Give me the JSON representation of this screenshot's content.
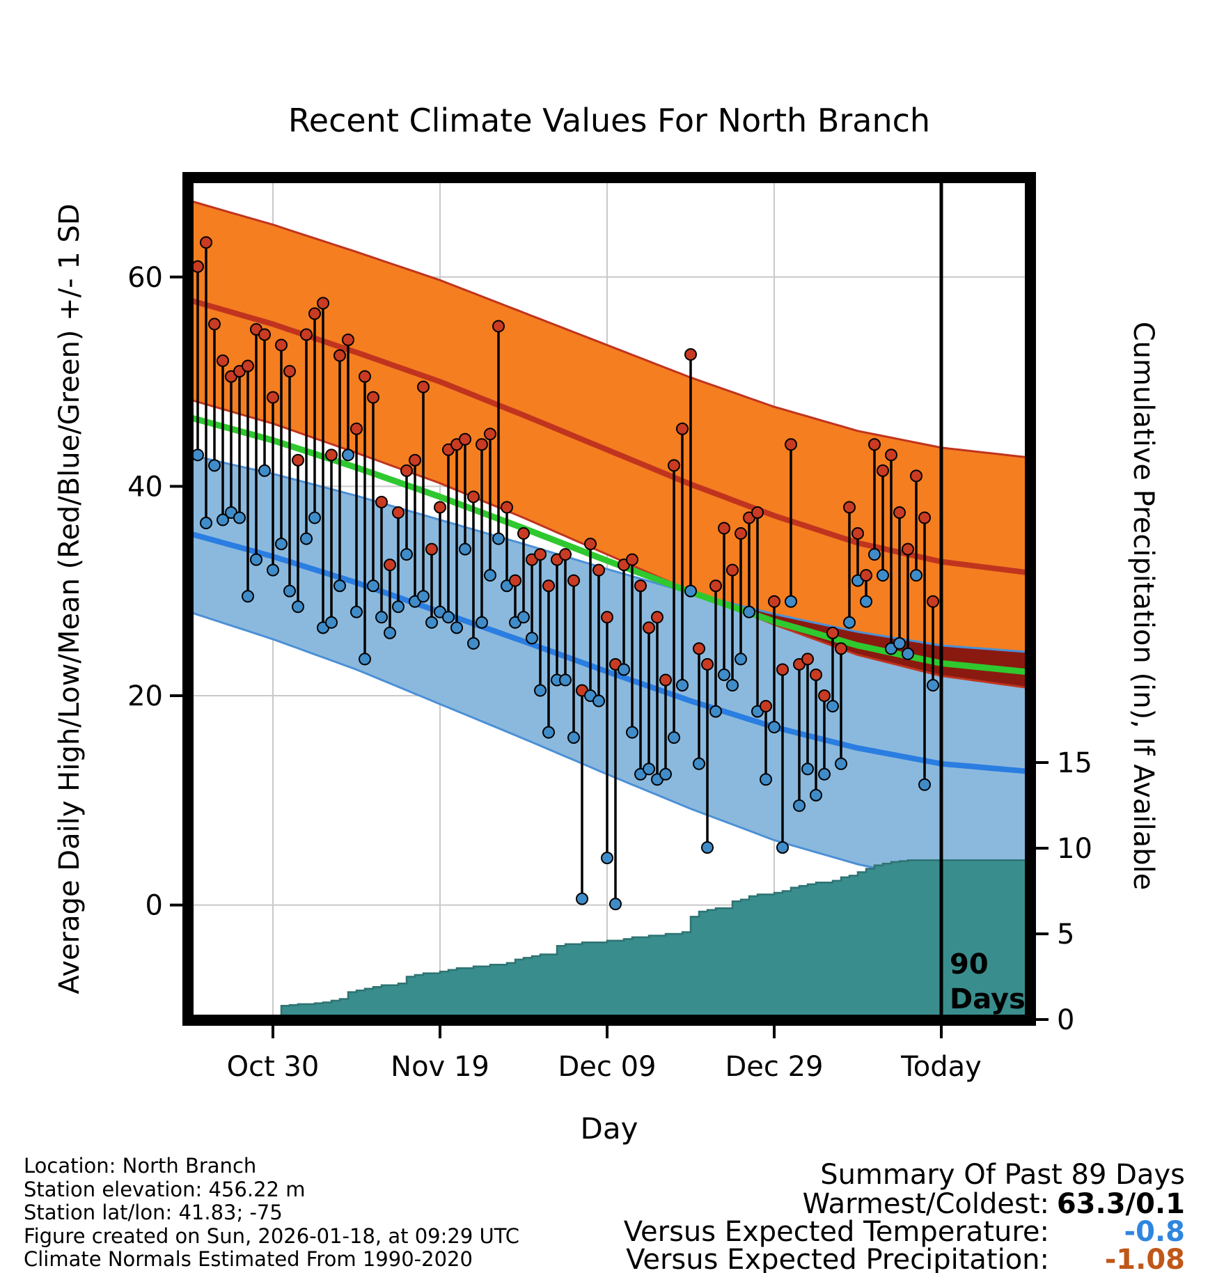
{
  "title": "Recent Climate Values For North Branch",
  "axis": {
    "xlabel": "Day",
    "ylabel_left": "Average Daily High/Low/Mean (Red/Blue/Green) +/- 1 SD",
    "ylabel_right": "Cumulative Precipitation (in), If Available"
  },
  "footer": {
    "lines": [
      "Location: North Branch",
      "Station elevation: 456.22 m",
      "Station lat/lon: 41.83; -75",
      "Figure created on Sun, 2026-01-18, at 09:29 UTC",
      "Climate Normals Estimated From 1990-2020"
    ]
  },
  "summary": {
    "title": "Summary Of Past 89 Days",
    "rows": [
      {
        "label": "Warmest/Coldest:",
        "value": "63.3/0.1",
        "color": "#000000"
      },
      {
        "label": "Versus Expected Temperature:",
        "value": "-0.8",
        "color": "#2e86de"
      },
      {
        "label": "Versus Expected Precipitation:",
        "value": "-1.08",
        "color": "#c0571a"
      }
    ]
  },
  "chart_data": {
    "type": "line",
    "title": "Recent Climate Values For North Branch",
    "xlabel": "Day",
    "ylabel_left": "Average Daily High/Low/Mean (Red/Blue/Green) +/- 1 SD",
    "ylabel_right": "Cumulative Precipitation (in), If Available",
    "x_range_days": [
      0,
      100.7
    ],
    "y_left_range": [
      -11,
      69.5
    ],
    "y_right_range": [
      0,
      49.1
    ],
    "y_left_ticks": [
      0,
      20,
      40,
      60
    ],
    "y_right_ticks": [
      0,
      5,
      10,
      15
    ],
    "x_ticks": [
      {
        "day": 10,
        "label": "Oct 30"
      },
      {
        "day": 30,
        "label": "Nov 19"
      },
      {
        "day": 50,
        "label": "Dec 09"
      },
      {
        "day": 70,
        "label": "Dec 29"
      },
      {
        "day": 90,
        "label": "Today"
      }
    ],
    "annotation": {
      "day": 90,
      "lines": [
        "90",
        "Days"
      ]
    },
    "normals_sample_days": [
      0,
      10,
      20,
      30,
      40,
      50,
      60,
      70,
      80,
      90,
      100
    ],
    "normals": {
      "high_mean": [
        57.8,
        55.5,
        52.8,
        50.0,
        46.8,
        43.5,
        40.2,
        37.2,
        34.6,
        32.8,
        31.8
      ],
      "high_sd": [
        9.5,
        9.5,
        9.6,
        9.7,
        9.8,
        10.0,
        10.2,
        10.4,
        10.7,
        10.9,
        11.0
      ],
      "mean": [
        46.6,
        44.4,
        41.8,
        39.0,
        36.0,
        32.9,
        29.9,
        27.1,
        24.8,
        23.1,
        22.3
      ],
      "low_mean": [
        35.5,
        33.3,
        30.8,
        28.0,
        25.2,
        22.3,
        19.5,
        17.0,
        15.0,
        13.5,
        12.8
      ],
      "low_sd": [
        7.5,
        7.9,
        8.3,
        8.8,
        9.3,
        9.8,
        10.3,
        10.8,
        11.1,
        11.3,
        11.4
      ]
    },
    "daily": {
      "start_day": 1,
      "high": [
        61.0,
        63.3,
        55.5,
        52.0,
        50.5,
        51.0,
        51.5,
        55.0,
        54.5,
        48.5,
        53.5,
        51.0,
        42.5,
        54.5,
        56.5,
        57.5,
        43.0,
        52.5,
        54.0,
        45.5,
        50.5,
        48.5,
        38.5,
        32.5,
        37.5,
        41.5,
        42.5,
        49.5,
        34.0,
        38.0,
        43.5,
        44.0,
        44.5,
        39.0,
        44.0,
        45.0,
        55.3,
        38.0,
        31.0,
        35.5,
        33.0,
        33.5,
        30.5,
        33.0,
        33.5,
        31.0,
        20.5,
        34.5,
        32.0,
        27.5,
        23.0,
        32.5,
        33.0,
        30.5,
        26.5,
        27.5,
        21.5,
        42.0,
        45.5,
        52.6,
        24.5,
        23.0,
        30.5,
        36.0,
        32.0,
        35.5,
        37.0,
        37.5,
        19.0,
        29.0,
        22.5,
        44.0,
        23.0,
        23.5,
        22.0,
        20.0,
        26.0,
        24.5,
        38.0,
        35.5,
        31.5,
        44.0,
        41.5,
        43.0,
        37.5,
        34.0,
        41.0,
        37.0,
        29.0
      ],
      "low": [
        43.0,
        36.5,
        42.0,
        36.8,
        37.5,
        37.0,
        29.5,
        33.0,
        41.5,
        32.0,
        34.5,
        30.0,
        28.5,
        35.0,
        37.0,
        26.5,
        27.0,
        30.5,
        43.0,
        28.0,
        23.5,
        30.5,
        27.5,
        26.0,
        28.5,
        33.5,
        29.0,
        29.5,
        27.0,
        28.0,
        27.5,
        26.5,
        34.0,
        25.0,
        27.0,
        31.5,
        35.0,
        30.5,
        27.0,
        27.5,
        25.5,
        20.5,
        16.5,
        21.5,
        21.5,
        16.0,
        0.6,
        20.0,
        19.5,
        4.5,
        0.1,
        22.5,
        16.5,
        12.5,
        13.0,
        12.0,
        12.5,
        16.0,
        21.0,
        30.0,
        13.5,
        5.5,
        18.5,
        22.0,
        21.0,
        23.5,
        28.0,
        18.5,
        12.0,
        17.0,
        5.5,
        29.0,
        9.5,
        13.0,
        10.5,
        12.5,
        19.0,
        13.5,
        27.0,
        31.0,
        29.0,
        33.5,
        31.5,
        24.5,
        25.0,
        24.0,
        31.5,
        11.5,
        21.0
      ]
    },
    "cumulative_precip": [
      0.05,
      0.05,
      0.08,
      0.1,
      0.1,
      0.12,
      0.15,
      0.15,
      0.18,
      0.2,
      0.8,
      0.85,
      0.9,
      0.9,
      0.95,
      1.0,
      1.1,
      1.2,
      1.6,
      1.7,
      1.8,
      1.9,
      2.0,
      2.0,
      2.1,
      2.5,
      2.6,
      2.7,
      2.7,
      2.8,
      2.9,
      3.0,
      3.0,
      3.1,
      3.1,
      3.2,
      3.2,
      3.3,
      3.5,
      3.6,
      3.7,
      3.8,
      3.8,
      4.3,
      4.4,
      4.4,
      4.5,
      4.5,
      4.5,
      4.6,
      4.6,
      4.7,
      4.8,
      4.8,
      4.9,
      4.9,
      5.0,
      5.0,
      5.1,
      6.0,
      6.3,
      6.4,
      6.5,
      6.5,
      6.9,
      7.0,
      7.2,
      7.3,
      7.3,
      7.4,
      7.5,
      7.7,
      7.8,
      7.9,
      8.0,
      8.0,
      8.1,
      8.3,
      8.4,
      8.6,
      8.8,
      9.0,
      9.1,
      9.2,
      9.25,
      9.3,
      9.3,
      9.3,
      9.3
    ],
    "colors": {
      "high_band": "#f57e20",
      "high_line": "#c0341f",
      "band_overlap": "#8a1a10",
      "mean_line": "#2fc82f",
      "low_band": "#8bb9dd",
      "low_line": "#2a7de1",
      "low_edge": "#4b90d6",
      "precip_fill": "#3a8d8d",
      "precip_edge": "#2e7373",
      "dot_high": "#c93b22",
      "dot_low": "#3f8cc9",
      "grid": "#c9c9c9"
    },
    "legend_position": "none",
    "grid": true
  }
}
